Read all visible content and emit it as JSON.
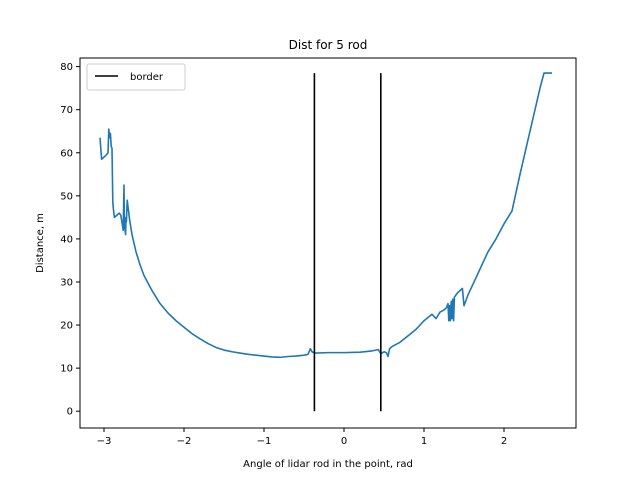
{
  "chart_data": {
    "type": "line",
    "title": "Dist for 5 rod",
    "xlabel": "Angle of lidar rod in the point, rad",
    "ylabel": "Distance, m",
    "xlim": [
      -3.3,
      2.9
    ],
    "ylim": [
      -3.9,
      82.0
    ],
    "xticks": [
      -3,
      -2,
      -1,
      0,
      1,
      2
    ],
    "xtick_labels": [
      "−3",
      "−2",
      "−1",
      "0",
      "1",
      "2"
    ],
    "yticks": [
      0,
      10,
      20,
      30,
      40,
      50,
      60,
      70,
      80
    ],
    "ytick_labels": [
      "0",
      "10",
      "20",
      "30",
      "40",
      "50",
      "60",
      "70",
      "80"
    ],
    "grid": false,
    "legend": {
      "position": "upper-left",
      "entries": [
        "border"
      ]
    },
    "series": [
      {
        "color": "#1f77b4",
        "x": [
          -3.05,
          -3.03,
          -3.0,
          -2.97,
          -2.95,
          -2.94,
          -2.93,
          -2.92,
          -2.91,
          -2.9,
          -2.89,
          -2.88,
          -2.87,
          -2.84,
          -2.81,
          -2.79,
          -2.76,
          -2.75,
          -2.745,
          -2.74,
          -2.73,
          -2.725,
          -2.72,
          -2.71,
          -2.7,
          -2.69,
          -2.68,
          -2.65,
          -2.6,
          -2.55,
          -2.5,
          -2.4,
          -2.3,
          -2.2,
          -2.1,
          -2.0,
          -1.9,
          -1.8,
          -1.7,
          -1.6,
          -1.5,
          -1.4,
          -1.3,
          -1.2,
          -1.1,
          -1.0,
          -0.9,
          -0.8,
          -0.7,
          -0.6,
          -0.5,
          -0.45,
          -0.42,
          -0.4,
          -0.38,
          -0.35,
          -0.2,
          0.0,
          0.2,
          0.35,
          0.43,
          0.46,
          0.5,
          0.53,
          0.55,
          0.57,
          0.6,
          0.7,
          0.8,
          0.9,
          1.0,
          1.1,
          1.15,
          1.2,
          1.25,
          1.28,
          1.3,
          1.31,
          1.32,
          1.33,
          1.34,
          1.35,
          1.36,
          1.37,
          1.38,
          1.4,
          1.42,
          1.45,
          1.48,
          1.5,
          1.52,
          1.55,
          1.6,
          1.7,
          1.8,
          1.9,
          2.0,
          2.1,
          2.2,
          2.25,
          2.3,
          2.35,
          2.4,
          2.45,
          2.5,
          2.55,
          2.58,
          2.6
        ],
        "y": [
          63.5,
          58.5,
          59.0,
          59.5,
          60.0,
          65.5,
          63.5,
          64.5,
          61.5,
          61.0,
          48.5,
          46.5,
          45.0,
          45.5,
          46.0,
          45.5,
          42.0,
          52.5,
          43.0,
          42.5,
          41.0,
          45.0,
          44.0,
          49.0,
          47.5,
          46.0,
          44.5,
          41.0,
          37.0,
          34.0,
          31.5,
          28.0,
          25.0,
          22.8,
          21.0,
          19.5,
          18.0,
          16.8,
          15.7,
          14.8,
          14.2,
          13.8,
          13.5,
          13.2,
          13.0,
          12.8,
          12.6,
          12.5,
          12.7,
          12.8,
          13.0,
          13.2,
          14.5,
          13.8,
          13.6,
          13.5,
          13.6,
          13.6,
          13.7,
          14.0,
          14.3,
          13.3,
          13.8,
          13.6,
          12.7,
          14.5,
          15.0,
          16.0,
          17.5,
          19.0,
          21.0,
          22.5,
          21.5,
          23.0,
          23.5,
          24.0,
          25.0,
          21.0,
          24.5,
          21.0,
          25.5,
          21.5,
          26.0,
          21.0,
          26.5,
          27.0,
          27.5,
          28.0,
          28.5,
          24.5,
          25.5,
          27.0,
          29.0,
          33.0,
          37.0,
          40.0,
          43.5,
          46.5,
          55.0,
          59.0,
          63.0,
          67.0,
          71.0,
          75.0,
          78.5,
          78.5,
          78.5,
          78.5
        ]
      },
      {
        "name": "border",
        "color": "#000000",
        "x": [
          -0.37,
          -0.37
        ],
        "y": [
          0,
          78.5
        ]
      },
      {
        "color": "#000000",
        "x": [
          0.46,
          0.46
        ],
        "y": [
          0,
          78.5
        ]
      }
    ]
  }
}
